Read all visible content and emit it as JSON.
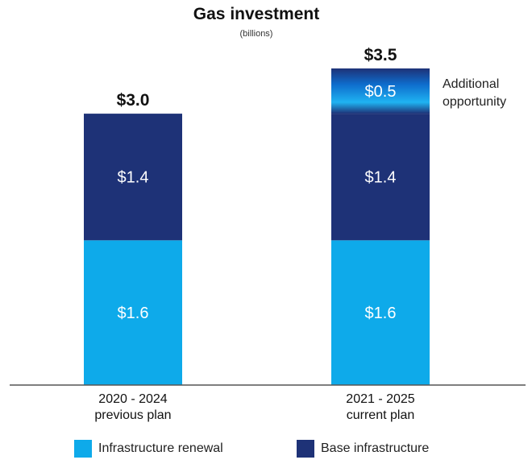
{
  "chart_data": {
    "type": "bar",
    "stacked": true,
    "title": "Gas investment",
    "subtitle": "(billions)",
    "categories": [
      "2020 - 2024\nprevious plan",
      "2021 - 2025\ncurrent plan"
    ],
    "series": [
      {
        "name": "Infrastructure renewal",
        "values": [
          1.6,
          1.6
        ],
        "labels": [
          "$1.6",
          "$1.6"
        ],
        "color": "#0eaaea"
      },
      {
        "name": "Base infrastructure",
        "values": [
          1.4,
          1.4
        ],
        "labels": [
          "$1.4",
          "$1.4"
        ],
        "color": "#1e3277"
      },
      {
        "name": "Additional opportunity",
        "values": [
          0,
          0.5
        ],
        "labels": [
          "",
          "$0.5"
        ],
        "color": "#0e7fd4"
      }
    ],
    "totals": [
      "$3.0",
      "$3.5"
    ],
    "annotation": "Additional\nopportunity",
    "ylim": [
      0,
      3.5
    ],
    "grid": false,
    "legend_position": "bottom"
  },
  "legend": {
    "items": [
      {
        "label": "Infrastructure renewal",
        "color": "#0eaaea"
      },
      {
        "label": "Base infrastructure",
        "color": "#1e3277"
      }
    ]
  }
}
